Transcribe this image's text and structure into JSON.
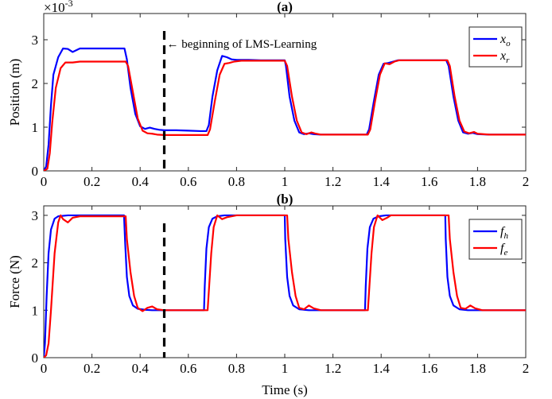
{
  "chart_data": [
    {
      "type": "line",
      "title": "(a)",
      "xlabel": "",
      "ylabel": "Position (m)",
      "scale_label": "×10",
      "scale_exp": "-3",
      "xlim": [
        0,
        2
      ],
      "ylim": [
        0,
        3.6
      ],
      "xticks": [
        "0",
        "0.2",
        "0.4",
        "0.6",
        "0.8",
        "1",
        "1.2",
        "1.4",
        "1.6",
        "1.8",
        "2"
      ],
      "yticks": [
        "0",
        "1",
        "2",
        "3"
      ],
      "grid": false,
      "legend_position": "top-right",
      "annotation": {
        "x": 0.5,
        "text": "← beginning of LMS-Learning"
      },
      "series": [
        {
          "name": "x",
          "sub": "o",
          "color": "#0000ff",
          "x": [
            0,
            0.01,
            0.02,
            0.03,
            0.04,
            0.06,
            0.08,
            0.1,
            0.12,
            0.15,
            0.2,
            0.25,
            0.3,
            0.335,
            0.345,
            0.36,
            0.38,
            0.4,
            0.42,
            0.44,
            0.46,
            0.48,
            0.5,
            0.55,
            0.6,
            0.65,
            0.675,
            0.685,
            0.7,
            0.72,
            0.74,
            0.76,
            0.78,
            0.8,
            0.85,
            0.9,
            0.95,
            1.0,
            1.005,
            1.02,
            1.04,
            1.06,
            1.08,
            1.1,
            1.12,
            1.15,
            1.2,
            1.3,
            1.34,
            1.35,
            1.37,
            1.39,
            1.41,
            1.43,
            1.45,
            1.47,
            1.5,
            1.55,
            1.6,
            1.65,
            1.67,
            1.68,
            1.7,
            1.72,
            1.74,
            1.76,
            1.78,
            1.8,
            1.85,
            1.9,
            1.95,
            2.0
          ],
          "y": [
            0,
            0.1,
            0.6,
            1.5,
            2.2,
            2.6,
            2.8,
            2.79,
            2.72,
            2.8,
            2.8,
            2.8,
            2.8,
            2.8,
            2.55,
            1.9,
            1.3,
            1.02,
            0.96,
            0.99,
            0.96,
            0.94,
            0.93,
            0.93,
            0.92,
            0.91,
            0.91,
            1.05,
            1.7,
            2.3,
            2.63,
            2.6,
            2.55,
            2.54,
            2.54,
            2.53,
            2.53,
            2.53,
            2.4,
            1.7,
            1.15,
            0.88,
            0.84,
            0.86,
            0.84,
            0.83,
            0.83,
            0.83,
            0.83,
            0.95,
            1.6,
            2.2,
            2.45,
            2.47,
            2.5,
            2.53,
            2.53,
            2.53,
            2.53,
            2.53,
            2.53,
            2.4,
            1.7,
            1.15,
            0.88,
            0.85,
            0.87,
            0.84,
            0.83,
            0.83,
            0.83,
            0.83
          ]
        },
        {
          "name": "x",
          "sub": "r",
          "color": "#ff0000",
          "x": [
            0,
            0.015,
            0.025,
            0.035,
            0.05,
            0.07,
            0.09,
            0.12,
            0.15,
            0.2,
            0.25,
            0.3,
            0.34,
            0.35,
            0.37,
            0.39,
            0.41,
            0.43,
            0.45,
            0.47,
            0.5,
            0.55,
            0.6,
            0.65,
            0.68,
            0.69,
            0.71,
            0.73,
            0.75,
            0.77,
            0.79,
            0.82,
            0.85,
            0.9,
            0.95,
            1.0,
            1.01,
            1.03,
            1.05,
            1.07,
            1.09,
            1.11,
            1.13,
            1.15,
            1.2,
            1.3,
            1.345,
            1.355,
            1.375,
            1.395,
            1.415,
            1.435,
            1.455,
            1.475,
            1.5,
            1.55,
            1.6,
            1.65,
            1.675,
            1.685,
            1.705,
            1.725,
            1.745,
            1.765,
            1.785,
            1.8,
            1.85,
            1.9,
            1.95,
            2.0
          ],
          "y": [
            0,
            0.05,
            0.4,
            1.1,
            1.9,
            2.35,
            2.48,
            2.48,
            2.5,
            2.5,
            2.5,
            2.5,
            2.5,
            2.4,
            1.8,
            1.2,
            0.92,
            0.86,
            0.85,
            0.83,
            0.82,
            0.82,
            0.82,
            0.82,
            0.82,
            0.95,
            1.6,
            2.2,
            2.45,
            2.47,
            2.5,
            2.52,
            2.52,
            2.52,
            2.52,
            2.52,
            2.4,
            1.7,
            1.15,
            0.88,
            0.84,
            0.88,
            0.85,
            0.83,
            0.83,
            0.83,
            0.83,
            0.95,
            1.6,
            2.2,
            2.46,
            2.44,
            2.5,
            2.53,
            2.53,
            2.53,
            2.53,
            2.53,
            2.53,
            2.4,
            1.7,
            1.15,
            0.9,
            0.86,
            0.89,
            0.85,
            0.83,
            0.83,
            0.83,
            0.83
          ]
        }
      ]
    },
    {
      "type": "line",
      "title": "(b)",
      "xlabel": "Time (s)",
      "ylabel": "Force (N)",
      "xlim": [
        0,
        2
      ],
      "ylim": [
        0,
        3.2
      ],
      "xticks": [
        "0",
        "0.2",
        "0.4",
        "0.6",
        "0.8",
        "1",
        "1.2",
        "1.4",
        "1.6",
        "1.8",
        "2"
      ],
      "yticks": [
        "0",
        "1",
        "2",
        "3"
      ],
      "grid": false,
      "legend_position": "top-right",
      "annotation": {
        "x": 0.5,
        "text": ""
      },
      "series": [
        {
          "name": "f",
          "sub": "h",
          "color": "#0000ff",
          "x": [
            0,
            0.005,
            0.012,
            0.02,
            0.03,
            0.045,
            0.06,
            0.1,
            0.2,
            0.3,
            0.333,
            0.338,
            0.345,
            0.355,
            0.37,
            0.39,
            0.42,
            0.45,
            0.5,
            0.6,
            0.665,
            0.668,
            0.675,
            0.685,
            0.7,
            0.72,
            0.75,
            0.8,
            0.9,
            1.0,
            1.002,
            1.01,
            1.02,
            1.035,
            1.06,
            1.1,
            1.2,
            1.3,
            1.333,
            1.336,
            1.343,
            1.353,
            1.368,
            1.39,
            1.42,
            1.5,
            1.6,
            1.666,
            1.668,
            1.675,
            1.685,
            1.7,
            1.725,
            1.76,
            1.8,
            1.9,
            2.0
          ],
          "y": [
            0,
            0.3,
            1.3,
            2.2,
            2.7,
            2.93,
            2.98,
            3.0,
            3.0,
            3.0,
            3.0,
            2.4,
            1.7,
            1.3,
            1.1,
            1.03,
            1.01,
            1.0,
            1.0,
            1.0,
            1.0,
            1.5,
            2.3,
            2.75,
            2.93,
            2.98,
            3.0,
            3.0,
            3.0,
            3.0,
            2.5,
            1.7,
            1.3,
            1.1,
            1.02,
            1.0,
            1.0,
            1.0,
            1.0,
            1.5,
            2.3,
            2.75,
            2.93,
            2.98,
            3.0,
            3.0,
            3.0,
            3.0,
            2.5,
            1.7,
            1.3,
            1.1,
            1.02,
            1.0,
            1.0,
            1.0,
            1.0
          ]
        },
        {
          "name": "f",
          "sub": "e",
          "color": "#ff0000",
          "x": [
            0,
            0.01,
            0.02,
            0.03,
            0.045,
            0.06,
            0.07,
            0.08,
            0.1,
            0.12,
            0.15,
            0.2,
            0.3,
            0.34,
            0.345,
            0.36,
            0.375,
            0.39,
            0.41,
            0.43,
            0.45,
            0.47,
            0.5,
            0.6,
            0.68,
            0.685,
            0.695,
            0.705,
            0.72,
            0.74,
            0.76,
            0.8,
            0.9,
            1.01,
            1.015,
            1.03,
            1.045,
            1.06,
            1.08,
            1.1,
            1.12,
            1.15,
            1.2,
            1.3,
            1.345,
            1.35,
            1.36,
            1.37,
            1.385,
            1.405,
            1.425,
            1.44,
            1.47,
            1.5,
            1.6,
            1.68,
            1.685,
            1.7,
            1.715,
            1.73,
            1.75,
            1.77,
            1.79,
            1.82,
            1.9,
            2.0
          ],
          "y": [
            0,
            0.05,
            0.3,
            1.0,
            2.2,
            2.85,
            3.0,
            2.92,
            2.85,
            2.95,
            2.98,
            2.98,
            2.98,
            2.98,
            2.5,
            1.8,
            1.3,
            1.05,
            0.98,
            1.05,
            1.08,
            1.02,
            1.0,
            1.0,
            1.0,
            1.4,
            2.2,
            2.75,
            3.0,
            2.92,
            2.96,
            3.0,
            3.0,
            3.0,
            2.5,
            1.8,
            1.3,
            1.05,
            1.02,
            1.1,
            1.04,
            1.0,
            1.0,
            1.0,
            1.0,
            1.4,
            2.2,
            2.75,
            3.0,
            2.9,
            2.95,
            3.0,
            3.0,
            3.0,
            3.0,
            3.0,
            2.5,
            1.8,
            1.3,
            1.05,
            1.03,
            1.1,
            1.04,
            1.0,
            1.0,
            1.0
          ]
        }
      ]
    }
  ]
}
